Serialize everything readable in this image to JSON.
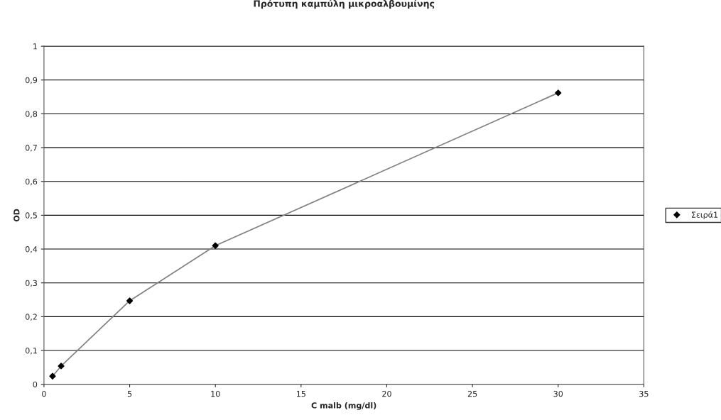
{
  "chart_data": {
    "type": "line",
    "title": "Πρότυπη καμπύλη μικροαλβουμίνης",
    "xlabel": "C malb (mg/dl)",
    "ylabel": "OD",
    "x": [
      0.5,
      1,
      5,
      10,
      30
    ],
    "series": [
      {
        "name": "Σειρά1",
        "color": "#808080",
        "values": [
          0.024,
          0.054,
          0.247,
          0.41,
          0.862
        ]
      }
    ],
    "xlim": [
      0,
      35
    ],
    "xticks": [
      0,
      5,
      10,
      15,
      20,
      25,
      30,
      35
    ],
    "ylim": [
      0,
      1
    ],
    "yticks": [
      0,
      {
        "value": 0.1,
        "label": "0,1"
      },
      {
        "value": 0.2,
        "label": "0,2"
      },
      {
        "value": 0.3,
        "label": "0,3"
      },
      {
        "value": 0.4,
        "label": "0,4"
      },
      {
        "value": 0.5,
        "label": "0,5"
      },
      {
        "value": 0.6,
        "label": "0,6"
      },
      {
        "value": 0.7,
        "label": "0,7"
      },
      {
        "value": 0.8,
        "label": "0,8"
      },
      {
        "value": 0.9,
        "label": "0,9"
      },
      1
    ],
    "grid": "y",
    "legend": "right",
    "marker": "diamond",
    "line_style": "solid"
  }
}
